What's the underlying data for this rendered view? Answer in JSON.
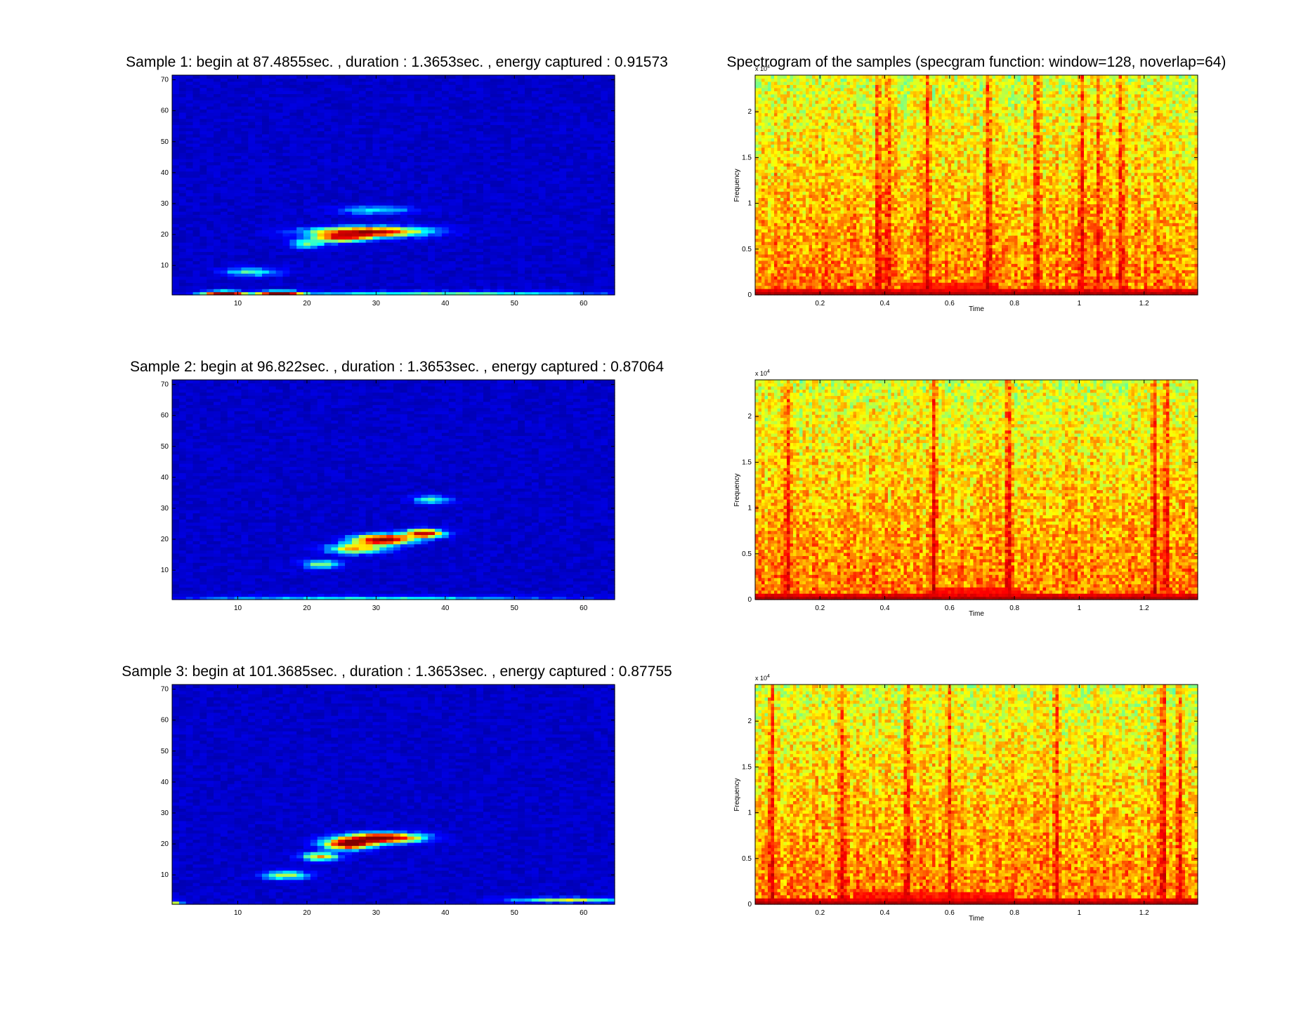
{
  "colormap": [
    "#00008f",
    "#0000ff",
    "#00ffff",
    "#ffff00",
    "#ff0000",
    "#800000"
  ],
  "chart_data": [
    {
      "type": "heatmap",
      "title": "Sample 1: begin at 87.4855sec. , duration : 1.3653sec. , energy captured : 0.91573",
      "xlim": [
        0.5,
        64.5
      ],
      "ylim": [
        0.5,
        71.5
      ],
      "xticks": [
        "10",
        "20",
        "30",
        "40",
        "50",
        "60"
      ],
      "yticks": [
        "10",
        "20",
        "30",
        "40",
        "50",
        "60",
        "70"
      ],
      "noise": 0.09,
      "hotspots": [
        {
          "x": 29,
          "y": 21,
          "sx": 6,
          "sy": 1.2,
          "v": 0.8
        },
        {
          "x": 25,
          "y": 19,
          "sx": 3,
          "sy": 1.0,
          "v": 0.6
        },
        {
          "x": 12,
          "y": 8,
          "sx": 3,
          "sy": 1.0,
          "v": 0.35
        },
        {
          "x": 20,
          "y": 17,
          "sx": 2,
          "sy": 1.0,
          "v": 0.35
        },
        {
          "x": 30,
          "y": 28,
          "sx": 4,
          "sy": 1.0,
          "v": 0.3
        },
        {
          "x": 8,
          "y": 1,
          "sx": 2,
          "sy": 0.6,
          "v": 0.9
        },
        {
          "x": 16,
          "y": 1,
          "sx": 2,
          "sy": 0.6,
          "v": 0.9
        },
        {
          "x": 40,
          "y": 1,
          "sx": 18,
          "sy": 0.6,
          "v": 0.35
        }
      ]
    },
    {
      "type": "heatmap",
      "title": "Spectrogram of the samples (specgram function: window=128, noverlap=64)",
      "xlabel": "Time",
      "ylabel": "Frequency",
      "yexponent": "x 10^4",
      "xlim": [
        0.0,
        1.3653
      ],
      "ylim": [
        0,
        2.4
      ],
      "xticks": [
        "0.2",
        "0.4",
        "0.6",
        "0.8",
        "1",
        "1.2"
      ],
      "yticks": [
        "0",
        "0.5",
        "1",
        "1.5",
        "2"
      ],
      "streaks": [
        0.38,
        0.41,
        0.53,
        0.72,
        0.87,
        1.01,
        1.06,
        1.13
      ],
      "low_band": {
        "t0": 0.45,
        "t1": 0.75
      }
    },
    {
      "type": "heatmap",
      "title": "Sample 2: begin at 96.822sec. , duration : 1.3653sec. , energy captured : 0.87064",
      "xlim": [
        0.5,
        64.5
      ],
      "ylim": [
        0.5,
        71.5
      ],
      "xticks": [
        "10",
        "20",
        "30",
        "40",
        "50",
        "60"
      ],
      "yticks": [
        "10",
        "20",
        "30",
        "40",
        "50",
        "60",
        "70"
      ],
      "noise": 0.09,
      "hotspots": [
        {
          "x": 31,
          "y": 20,
          "sx": 3,
          "sy": 1.2,
          "v": 0.9
        },
        {
          "x": 37,
          "y": 22,
          "sx": 2,
          "sy": 1.0,
          "v": 0.8
        },
        {
          "x": 27,
          "y": 17,
          "sx": 3,
          "sy": 1.2,
          "v": 0.55
        },
        {
          "x": 22,
          "y": 12,
          "sx": 2,
          "sy": 1.0,
          "v": 0.4
        },
        {
          "x": 38,
          "y": 33,
          "sx": 2,
          "sy": 1.0,
          "v": 0.35
        },
        {
          "x": 30,
          "y": 1,
          "sx": 20,
          "sy": 0.6,
          "v": 0.3
        }
      ]
    },
    {
      "type": "heatmap",
      "xlabel": "Time",
      "ylabel": "Frequency",
      "yexponent": "x 10^4",
      "xlim": [
        0.0,
        1.3653
      ],
      "ylim": [
        0,
        2.4
      ],
      "xticks": [
        "0.2",
        "0.4",
        "0.6",
        "0.8",
        "1",
        "1.2"
      ],
      "yticks": [
        "0",
        "0.5",
        "1",
        "1.5",
        "2"
      ],
      "streaks": [
        0.1,
        0.55,
        0.78,
        1.23,
        1.27
      ],
      "low_band": {
        "t0": 0.55,
        "t1": 0.82
      }
    },
    {
      "type": "heatmap",
      "title": "Sample 3: begin at 101.3685sec. , duration : 1.3653sec. , energy captured : 0.87755",
      "xlim": [
        0.5,
        64.5
      ],
      "ylim": [
        0.5,
        71.5
      ],
      "xticks": [
        "10",
        "20",
        "30",
        "40",
        "50",
        "60"
      ],
      "yticks": [
        "10",
        "20",
        "30",
        "40",
        "50",
        "60",
        "70"
      ],
      "noise": 0.09,
      "hotspots": [
        {
          "x": 31,
          "y": 22,
          "sx": 4,
          "sy": 1.2,
          "v": 0.9
        },
        {
          "x": 26,
          "y": 20,
          "sx": 2.5,
          "sy": 1.2,
          "v": 0.85
        },
        {
          "x": 22,
          "y": 16,
          "sx": 2,
          "sy": 1.0,
          "v": 0.55
        },
        {
          "x": 17,
          "y": 10,
          "sx": 2.5,
          "sy": 1.0,
          "v": 0.45
        },
        {
          "x": 58,
          "y": 2,
          "sx": 6,
          "sy": 0.6,
          "v": 0.45
        },
        {
          "x": 1,
          "y": 1,
          "sx": 0.8,
          "sy": 0.6,
          "v": 0.45
        }
      ]
    },
    {
      "type": "heatmap",
      "xlabel": "Time",
      "ylabel": "Frequency",
      "yexponent": "x 10^4",
      "xlim": [
        0.0,
        1.3653
      ],
      "ylim": [
        0,
        2.4
      ],
      "xticks": [
        "0.2",
        "0.4",
        "0.6",
        "0.8",
        "1",
        "1.2"
      ],
      "yticks": [
        "0",
        "0.5",
        "1",
        "1.5",
        "2"
      ],
      "streaks": [
        0.05,
        0.27,
        0.47,
        0.6,
        0.93,
        1.26,
        1.31
      ],
      "low_band": {
        "t0": 0.3,
        "t1": 0.8
      }
    }
  ]
}
